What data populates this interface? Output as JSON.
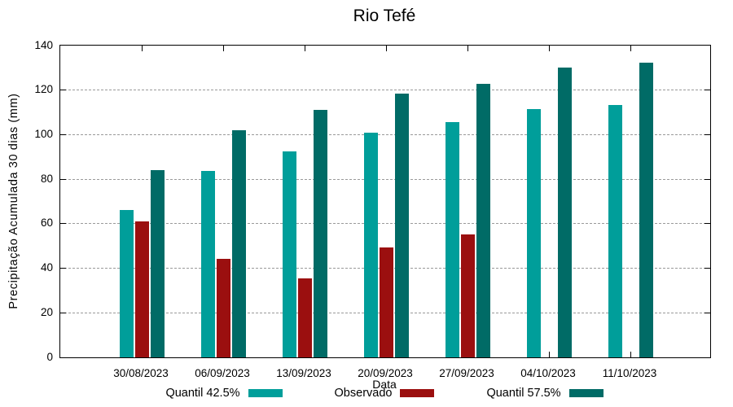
{
  "title": "Rio Tefé",
  "chart_data": {
    "type": "bar",
    "title": "Rio Tefé",
    "xlabel": "Data",
    "ylabel": "Precipitação Acumulada 30 dias (mm)",
    "categories": [
      "30/08/2023",
      "06/09/2023",
      "13/09/2023",
      "20/09/2023",
      "27/09/2023",
      "04/10/2023",
      "11/10/2023"
    ],
    "series": [
      {
        "name": "Quantil 42.5%",
        "color": "#009E9A",
        "values": [
          66.2,
          83.7,
          92.5,
          100.9,
          105.8,
          111.4,
          113.4
        ]
      },
      {
        "name": "Observado",
        "color": "#9B0F0F",
        "values": [
          61.2,
          44.3,
          35.6,
          49.4,
          55.3,
          null,
          null
        ]
      },
      {
        "name": "Quantil 57.5%",
        "color": "#006B66",
        "values": [
          84.0,
          102.0,
          111.3,
          118.6,
          123.0,
          130.2,
          132.4
        ]
      }
    ],
    "ylim": [
      0,
      140
    ],
    "yticks": [
      0,
      20,
      40,
      60,
      80,
      100,
      120,
      140
    ],
    "grid": "y-dashed",
    "gridline_color": "#9a9a9a",
    "frame_color": "#000000",
    "legend_position": "bottom"
  }
}
